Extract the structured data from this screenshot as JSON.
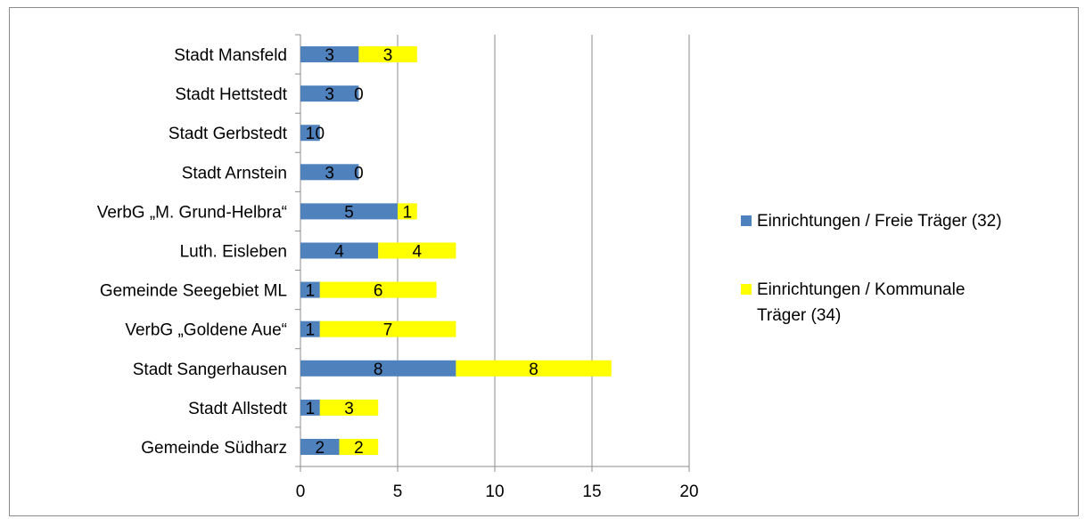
{
  "chart_data": {
    "type": "bar",
    "orientation": "horizontal",
    "stacked": true,
    "categories": [
      "Stadt Mansfeld",
      "Stadt Hettstedt",
      "Stadt Gerbstedt",
      "Stadt Arnstein",
      "VerbG „M. Grund-Helbra“",
      "Luth. Eisleben",
      "Gemeinde Seegebiet ML",
      "VerbG „Goldene Aue“",
      "Stadt Sangerhausen",
      "Stadt Allstedt",
      "Gemeinde Südharz"
    ],
    "series": [
      {
        "name": "Einrichtungen / Freie Träger (32)",
        "values": [
          3,
          3,
          1,
          3,
          5,
          4,
          1,
          1,
          8,
          1,
          2
        ],
        "color": "#4f81bd"
      },
      {
        "name": "Einrichtungen / Kommunale Träger (34)",
        "values": [
          3,
          0,
          0,
          0,
          1,
          4,
          6,
          7,
          8,
          3,
          2
        ],
        "color": "#ffff00"
      }
    ],
    "xlim": [
      0,
      20
    ],
    "xticks": [
      "0",
      "5",
      "10",
      "15",
      "20"
    ],
    "grid": "vertical",
    "legend_position": "right",
    "legend_lines": [
      [
        "Einrichtungen / Freie Träger (32)"
      ],
      [
        "Einrichtungen / Kommunale",
        "Träger (34)"
      ]
    ]
  }
}
